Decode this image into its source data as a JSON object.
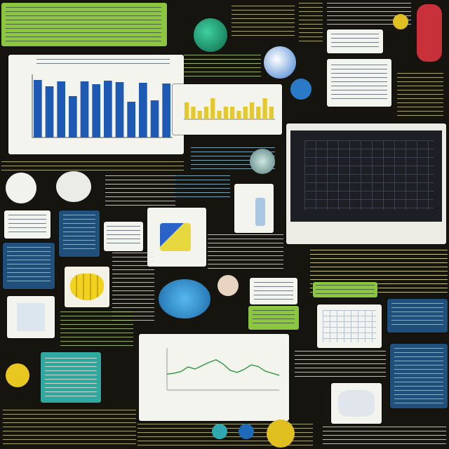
{
  "colors": {
    "background": "#15140f",
    "accent_green": "#8cc63f",
    "accent_blue": "#1f4f7a",
    "accent_teal": "#2fa8a0",
    "accent_yellow": "#e8d840",
    "bar_blue": "#1e5ab4",
    "bar_yellow": "#e5c92c",
    "line_green": "#3a9a4a"
  },
  "icons": [
    "globe-icon",
    "shield-icon",
    "lens-icon",
    "flask-icon",
    "gear-icon",
    "bananas-icon",
    "bowl-icon",
    "phone-icon"
  ],
  "charts": {
    "bar_main": {
      "values": [
        8.2,
        7.3,
        8.0,
        5.9,
        8.0,
        7.6,
        8.1,
        7.9,
        5.1,
        7.8,
        5.3,
        7.7
      ]
    },
    "bar_small": {
      "values": [
        4,
        3,
        2,
        3,
        5,
        2,
        3,
        3,
        2,
        3,
        4,
        3,
        5,
        3
      ]
    },
    "line_plot": {
      "values": [
        0.38,
        0.4,
        0.44,
        0.55,
        0.5,
        0.58,
        0.66,
        0.72,
        0.62,
        0.47,
        0.42,
        0.49,
        0.6,
        0.56,
        0.45,
        0.4,
        0.35
      ]
    }
  }
}
